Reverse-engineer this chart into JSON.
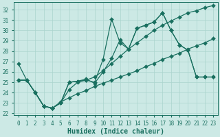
{
  "xlabel": "Humidex (Indice chaleur)",
  "bg_color": "#cce9e5",
  "grid_color": "#aad4ce",
  "line_color": "#1a7060",
  "xlim": [
    -0.5,
    23.5
  ],
  "ylim": [
    21.8,
    32.7
  ],
  "yticks": [
    22,
    23,
    24,
    25,
    26,
    27,
    28,
    29,
    30,
    31,
    32
  ],
  "xticks": [
    0,
    1,
    2,
    3,
    4,
    5,
    6,
    7,
    8,
    9,
    10,
    11,
    12,
    13,
    14,
    15,
    16,
    17,
    18,
    19,
    20,
    21,
    22,
    23
  ],
  "line_spiky_x": [
    0,
    1,
    2,
    3,
    4,
    5,
    6,
    7,
    8,
    9,
    10,
    11,
    12,
    13,
    14,
    15,
    16,
    17,
    18,
    19,
    20,
    21,
    22,
    23
  ],
  "line_spiky_y": [
    26.8,
    25.2,
    24.0,
    22.7,
    22.5,
    23.0,
    25.0,
    25.1,
    25.2,
    25.0,
    27.2,
    31.1,
    28.8,
    28.2,
    30.2,
    30.5,
    30.8,
    31.7,
    30.0,
    28.6,
    28.1,
    25.5,
    25.5,
    25.5
  ],
  "line_diag_x": [
    0,
    1,
    2,
    3,
    4,
    5,
    6,
    7,
    8,
    9,
    10,
    11,
    12,
    13,
    14,
    15,
    16,
    17,
    18,
    19,
    20,
    21,
    22,
    23
  ],
  "line_diag_y": [
    25.2,
    25.2,
    24.0,
    22.7,
    22.5,
    23.0,
    24.3,
    25.0,
    25.2,
    25.5,
    26.1,
    26.8,
    27.5,
    28.2,
    28.8,
    29.4,
    30.0,
    30.5,
    30.9,
    31.3,
    31.7,
    31.9,
    32.2,
    32.4
  ],
  "line_closed_x": [
    0,
    1,
    2,
    3,
    4,
    5,
    6,
    7,
    8,
    9,
    10,
    11,
    12,
    13,
    14,
    15,
    16,
    17,
    18,
    19,
    20,
    21,
    22,
    23
  ],
  "line_closed_y": [
    25.2,
    25.2,
    24.0,
    22.7,
    22.5,
    23.0,
    25.0,
    25.1,
    25.3,
    24.9,
    26.0,
    27.3,
    29.1,
    28.2,
    30.2,
    30.5,
    30.8,
    31.7,
    30.0,
    28.6,
    28.1,
    25.5,
    25.5,
    25.5
  ],
  "line_flat_x": [
    0,
    1,
    2,
    3,
    4,
    5,
    6,
    7,
    8,
    9,
    10,
    11,
    12,
    13,
    14,
    15,
    16,
    17,
    18,
    19,
    20,
    21,
    22,
    23
  ],
  "line_flat_y": [
    25.2,
    25.2,
    24.0,
    22.7,
    22.5,
    23.1,
    23.5,
    23.9,
    24.2,
    24.6,
    24.9,
    25.2,
    25.5,
    25.8,
    26.1,
    26.5,
    26.8,
    27.2,
    27.5,
    27.8,
    28.2,
    28.5,
    28.8,
    29.2
  ],
  "marker_size": 3.0,
  "axis_fontsize": 7,
  "tick_fontsize": 5.5
}
